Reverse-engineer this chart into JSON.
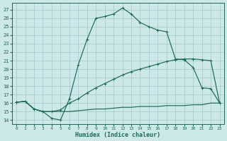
{
  "xlabel": "Humidex (Indice chaleur)",
  "background_color": "#cce8e8",
  "grid_color": "#aacccc",
  "line_color": "#1a6b5a",
  "xlim": [
    -0.5,
    23.5
  ],
  "ylim": [
    13.5,
    27.8
  ],
  "yticks": [
    14,
    15,
    16,
    17,
    18,
    19,
    20,
    21,
    22,
    23,
    24,
    25,
    26,
    27
  ],
  "xticks": [
    0,
    1,
    2,
    3,
    4,
    5,
    6,
    7,
    8,
    9,
    10,
    11,
    12,
    13,
    14,
    15,
    16,
    17,
    18,
    19,
    20,
    21,
    22,
    23
  ],
  "line1_x": [
    0,
    1,
    2,
    3,
    4,
    5,
    6,
    7,
    8,
    9,
    10,
    11,
    12,
    13,
    14,
    15,
    16,
    17,
    18,
    19,
    20,
    21,
    22,
    23
  ],
  "line1_y": [
    16.1,
    16.2,
    15.3,
    15.0,
    14.2,
    14.0,
    16.5,
    20.5,
    23.5,
    26.0,
    26.2,
    26.5,
    27.2,
    26.5,
    25.5,
    25.0,
    24.6,
    24.4,
    21.2,
    21.1,
    20.2,
    17.8,
    17.7,
    16.0
  ],
  "line2_x": [
    0,
    1,
    2,
    3,
    4,
    5,
    6,
    7,
    8,
    9,
    10,
    11,
    12,
    13,
    14,
    15,
    16,
    17,
    18,
    19,
    20,
    21,
    22,
    23
  ],
  "line2_y": [
    16.1,
    16.2,
    15.3,
    15.0,
    15.0,
    15.0,
    15.0,
    15.1,
    15.2,
    15.3,
    15.3,
    15.4,
    15.5,
    15.5,
    15.6,
    15.6,
    15.6,
    15.7,
    15.7,
    15.7,
    15.8,
    15.8,
    16.0,
    16.0
  ],
  "line3_x": [
    0,
    1,
    2,
    3,
    4,
    5,
    6,
    7,
    8,
    9,
    10,
    11,
    12,
    13,
    14,
    15,
    16,
    17,
    18,
    19,
    20,
    21,
    22,
    23
  ],
  "line3_y": [
    16.1,
    16.2,
    15.3,
    15.0,
    15.0,
    15.2,
    16.0,
    16.5,
    17.2,
    17.8,
    18.3,
    18.8,
    19.3,
    19.7,
    20.0,
    20.3,
    20.6,
    20.9,
    21.1,
    21.2,
    21.2,
    21.1,
    21.0,
    16.0
  ]
}
